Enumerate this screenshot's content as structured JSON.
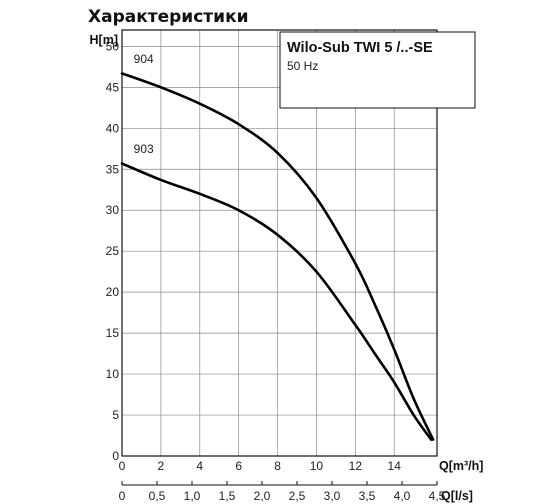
{
  "chart_data": {
    "type": "line",
    "title": "Характеристики",
    "ylabel": "H[m]",
    "xlabel": "Q[m³/h]",
    "x2label": "Q[l/s]",
    "xlim": [
      0,
      16.2
    ],
    "ylim": [
      0,
      52
    ],
    "x_ticks": [
      0,
      2,
      4,
      6,
      8,
      10,
      12,
      14
    ],
    "y_ticks": [
      0,
      5,
      10,
      15,
      20,
      25,
      30,
      35,
      40,
      45,
      50
    ],
    "x2_ticks": [
      "0",
      "0,5",
      "1,0",
      "1,5",
      "2,0",
      "2,5",
      "3,0",
      "3,5",
      "4,0",
      "4,5"
    ],
    "x2_values": [
      0,
      0.5,
      1.0,
      1.5,
      2.0,
      2.5,
      3.0,
      3.5,
      4.0,
      4.5
    ],
    "grid": true,
    "legend": {
      "title": "Wilo-Sub TWI 5 /..-SE",
      "subtitle": "50 Hz",
      "placement": "top-right"
    },
    "series": [
      {
        "name": "904",
        "x": [
          0,
          2,
          4,
          6,
          8,
          10,
          12,
          13,
          14,
          15,
          16
        ],
        "y": [
          46.7,
          45.0,
          43.0,
          40.5,
          37.0,
          31.5,
          23.5,
          18.5,
          13.0,
          7.0,
          2.0
        ]
      },
      {
        "name": "903",
        "x": [
          0,
          2,
          4,
          6,
          8,
          10,
          12,
          13,
          14,
          15,
          15.9
        ],
        "y": [
          35.7,
          33.7,
          32.0,
          30.0,
          27.0,
          22.5,
          16.0,
          12.5,
          9.0,
          5.0,
          2.0
        ]
      }
    ]
  }
}
